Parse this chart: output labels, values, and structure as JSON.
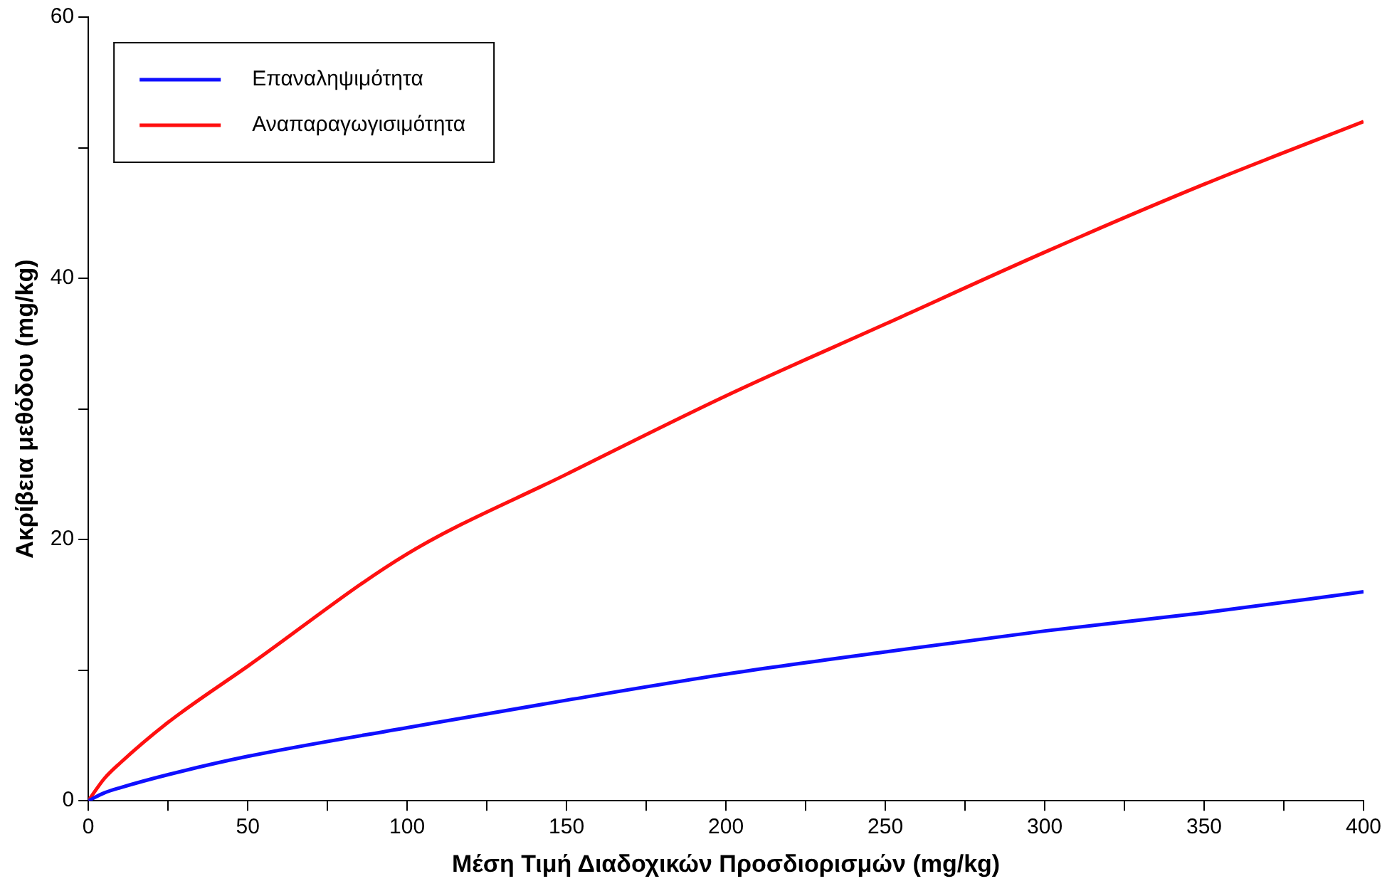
{
  "chart_data": {
    "type": "line",
    "xlabel": "Μέση Τιμή Διαδοχικών Προσδιορισμών (mg/kg)",
    "ylabel": "Ακρίβεια μεθόδου (mg/kg)",
    "x": [
      0,
      5,
      10,
      25,
      50,
      100,
      150,
      200,
      250,
      300,
      350,
      400
    ],
    "series": [
      {
        "name": "Επαναληψιμότητα",
        "color": "#1010ff",
        "values": [
          0,
          0.6,
          1.0,
          2.0,
          3.4,
          5.6,
          7.7,
          9.7,
          11.4,
          13.0,
          14.4,
          16.0
        ]
      },
      {
        "name": "Αναπαραγωγισιμότητα",
        "color": "#ff1010",
        "values": [
          0,
          1.7,
          2.9,
          6.0,
          10.3,
          18.9,
          25.0,
          31.0,
          36.5,
          42.0,
          47.2,
          52.0
        ]
      }
    ],
    "xlim": [
      0,
      400
    ],
    "xticks": [
      0,
      {
        "value": 25,
        "label": null
      },
      50,
      {
        "value": 75,
        "label": null
      },
      100,
      {
        "value": 125,
        "label": null
      },
      150,
      {
        "value": 175,
        "label": null
      },
      200,
      {
        "value": 225,
        "label": null
      },
      250,
      {
        "value": 275,
        "label": null
      },
      300,
      {
        "value": 325,
        "label": null
      },
      350,
      {
        "value": 375,
        "label": null
      },
      400
    ],
    "ylim": [
      0,
      60
    ],
    "yticks": [
      0,
      {
        "value": 10,
        "label": null
      },
      20,
      {
        "value": 30,
        "label": null
      },
      40,
      {
        "value": 50,
        "label": null
      },
      60
    ],
    "grid": false,
    "legend": "top left",
    "marker": "none",
    "line_style": "solid"
  }
}
